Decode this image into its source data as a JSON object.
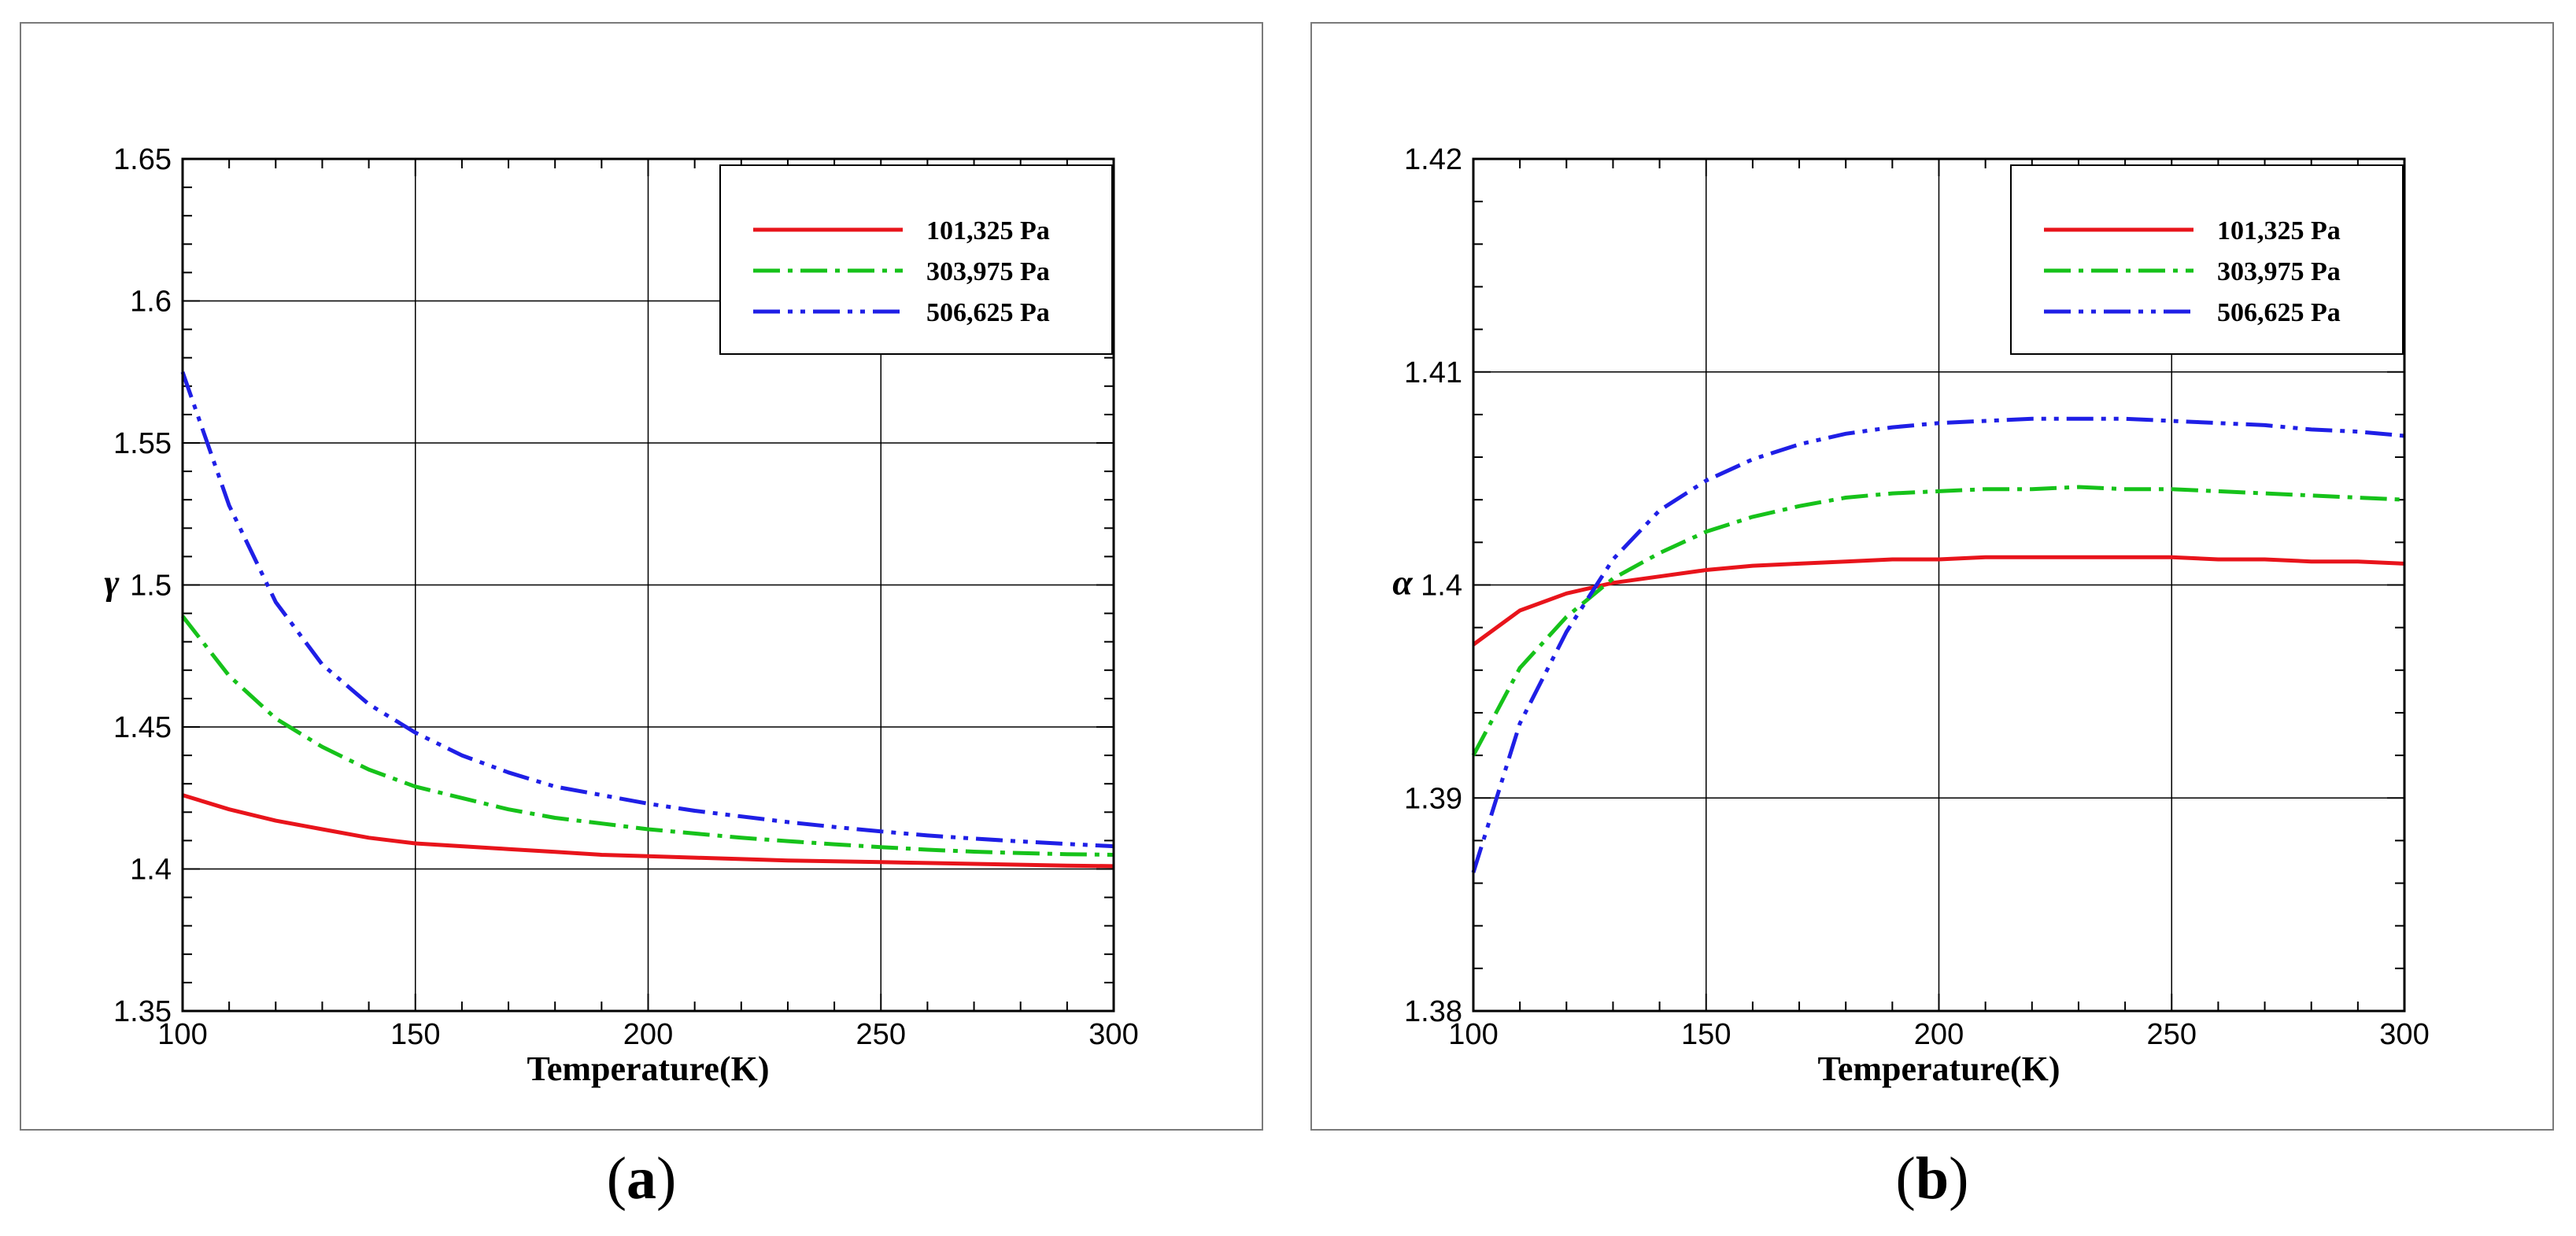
{
  "chart_data": [
    {
      "type": "line",
      "panel": "a",
      "xlabel": "Temperature(K)",
      "ylabel": "γ",
      "xlim": [
        100,
        300
      ],
      "ylim": [
        1.35,
        1.65
      ],
      "xticks": [
        100,
        150,
        200,
        250,
        300
      ],
      "xtick_labels": [
        "100",
        "150",
        "200",
        "250",
        "300"
      ],
      "yticks": [
        1.35,
        1.4,
        1.45,
        1.5,
        1.55,
        1.6,
        1.65
      ],
      "ytick_labels": [
        "1.35",
        "1.4",
        "1.45",
        "1.5",
        "1.55",
        "1.6",
        "1.65"
      ],
      "grid": true,
      "legend_position": "top-right",
      "x": [
        100,
        110,
        120,
        130,
        140,
        150,
        160,
        170,
        180,
        190,
        200,
        210,
        220,
        230,
        240,
        250,
        260,
        270,
        280,
        290,
        300
      ],
      "series": [
        {
          "name": "101,325 Pa",
          "color": "#e8141b",
          "dash": "solid",
          "values": [
            1.426,
            1.421,
            1.417,
            1.414,
            1.411,
            1.409,
            1.408,
            1.407,
            1.406,
            1.405,
            1.4045,
            1.404,
            1.4035,
            1.403,
            1.4027,
            1.4024,
            1.4021,
            1.4018,
            1.4015,
            1.4012,
            1.401
          ]
        },
        {
          "name": "303,975 Pa",
          "color": "#16c21a",
          "dash": "dashdot",
          "values": [
            1.489,
            1.468,
            1.453,
            1.443,
            1.435,
            1.429,
            1.425,
            1.421,
            1.418,
            1.416,
            1.414,
            1.4125,
            1.411,
            1.4098,
            1.4087,
            1.4077,
            1.4068,
            1.4061,
            1.4056,
            1.4052,
            1.405
          ]
        },
        {
          "name": "506,625 Pa",
          "color": "#1f1fe6",
          "dash": "dashdotdot",
          "values": [
            1.575,
            1.528,
            1.494,
            1.472,
            1.458,
            1.448,
            1.44,
            1.434,
            1.429,
            1.426,
            1.423,
            1.4205,
            1.4185,
            1.4165,
            1.4148,
            1.4132,
            1.4118,
            1.4107,
            1.4097,
            1.4088,
            1.408
          ]
        }
      ]
    },
    {
      "type": "line",
      "panel": "b",
      "xlabel": "Temperature(K)",
      "ylabel": "α",
      "xlim": [
        100,
        300
      ],
      "ylim": [
        1.38,
        1.42
      ],
      "xticks": [
        100,
        150,
        200,
        250,
        300
      ],
      "xtick_labels": [
        "100",
        "150",
        "200",
        "250",
        "300"
      ],
      "yticks": [
        1.38,
        1.39,
        1.4,
        1.41,
        1.42
      ],
      "ytick_labels": [
        "1.38",
        "1.39",
        "1.4",
        "1.41",
        "1.42"
      ],
      "grid": true,
      "legend_position": "top-right",
      "x": [
        100,
        110,
        120,
        130,
        140,
        150,
        160,
        170,
        180,
        190,
        200,
        210,
        220,
        230,
        240,
        250,
        260,
        270,
        280,
        290,
        300
      ],
      "series": [
        {
          "name": "101,325 Pa",
          "color": "#e8141b",
          "dash": "solid",
          "values": [
            1.3972,
            1.3988,
            1.3996,
            1.4001,
            1.4004,
            1.4007,
            1.4009,
            1.401,
            1.4011,
            1.4012,
            1.4012,
            1.4013,
            1.4013,
            1.4013,
            1.4013,
            1.4013,
            1.4012,
            1.4012,
            1.4011,
            1.4011,
            1.401
          ]
        },
        {
          "name": "303,975 Pa",
          "color": "#16c21a",
          "dash": "dashdot",
          "values": [
            1.392,
            1.3961,
            1.3985,
            1.4003,
            1.4015,
            1.4025,
            1.4032,
            1.4037,
            1.4041,
            1.4043,
            1.4044,
            1.4045,
            1.4045,
            1.4046,
            1.4045,
            1.4045,
            1.4044,
            1.4043,
            1.4042,
            1.4041,
            1.404
          ]
        },
        {
          "name": "506,625 Pa",
          "color": "#1f1fe6",
          "dash": "dashdotdot",
          "values": [
            1.3865,
            1.3935,
            1.3978,
            1.4012,
            1.4035,
            1.4049,
            1.4059,
            1.4066,
            1.4071,
            1.4074,
            1.4076,
            1.4077,
            1.4078,
            1.4078,
            1.4078,
            1.4077,
            1.4076,
            1.4075,
            1.4073,
            1.4072,
            1.407
          ]
        }
      ]
    }
  ],
  "captions": [
    "a",
    "b"
  ]
}
